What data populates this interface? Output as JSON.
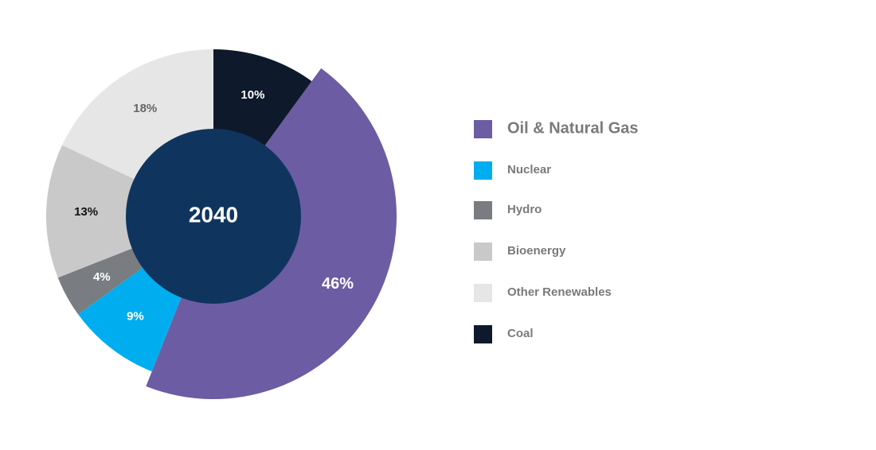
{
  "chart_data": {
    "type": "pie",
    "center_label": "2040",
    "categories": [
      "Oil & Natural Gas",
      "Nuclear",
      "Hydro",
      "Bioenergy",
      "Other Renewables",
      "Coal"
    ],
    "values": [
      46,
      9,
      4,
      13,
      18,
      10
    ],
    "value_labels": [
      "46%",
      "9%",
      "4%",
      "13%",
      "18%",
      "10%"
    ],
    "colors": [
      "#6c5ca3",
      "#00aeef",
      "#797c80",
      "#c9c9c9",
      "#e6e6e6",
      "#0e1a2b"
    ],
    "legend": "right"
  }
}
